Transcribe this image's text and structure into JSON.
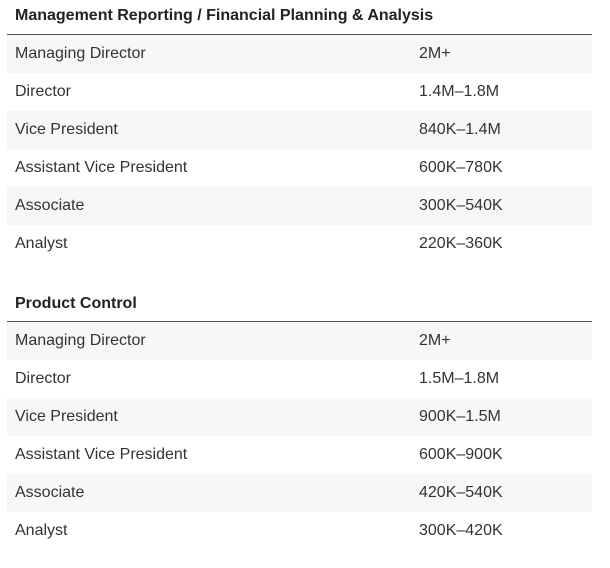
{
  "sections": [
    {
      "title": "Management Reporting / Financial Planning & Analysis",
      "rows": [
        {
          "title": "Managing Director",
          "range": "2M+"
        },
        {
          "title": "Director",
          "range": "1.4M–1.8M"
        },
        {
          "title": "Vice President",
          "range": "840K–1.4M"
        },
        {
          "title": "Assistant Vice President",
          "range": "600K–780K"
        },
        {
          "title": "Associate",
          "range": "300K–540K"
        },
        {
          "title": "Analyst",
          "range": "220K–360K"
        }
      ]
    },
    {
      "title": "Product Control",
      "rows": [
        {
          "title": "Managing Director",
          "range": "2M+"
        },
        {
          "title": "Director",
          "range": "1.5M–1.8M"
        },
        {
          "title": "Vice President",
          "range": "900K–1.5M"
        },
        {
          "title": "Assistant Vice President",
          "range": "600K–900K"
        },
        {
          "title": "Associate",
          "range": "420K–540K"
        },
        {
          "title": "Analyst",
          "range": "300K–420K"
        }
      ]
    }
  ]
}
